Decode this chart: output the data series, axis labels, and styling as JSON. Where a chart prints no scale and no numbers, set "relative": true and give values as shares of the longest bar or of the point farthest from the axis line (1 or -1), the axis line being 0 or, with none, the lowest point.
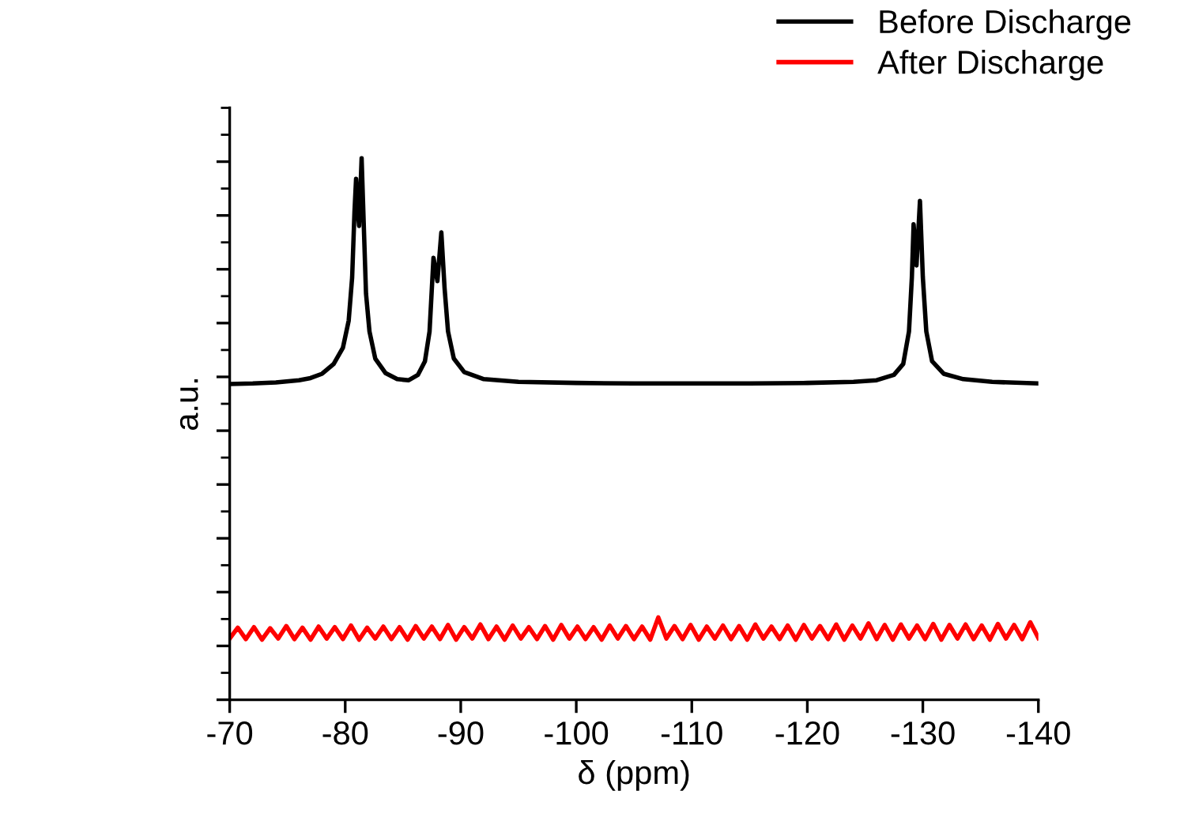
{
  "chart_data": {
    "type": "line",
    "xlabel": "δ (ppm)",
    "ylabel": "a.u.",
    "relative": true,
    "xlim": [
      -70,
      -140
    ],
    "xticks": [
      -70,
      -80,
      -90,
      -100,
      -110,
      -120,
      -130,
      -140
    ],
    "legend": "top right",
    "grid": false,
    "marker": "none",
    "line_style": "solid",
    "series": [
      {
        "name": "Before Discharge",
        "color": "#000000",
        "x": [
          -70,
          -72,
          -74,
          -76,
          -77,
          -78,
          -79,
          -79.8,
          -80.3,
          -80.6,
          -80.8,
          -80.94,
          -81.1,
          -81.2,
          -81.42,
          -81.6,
          -81.8,
          -82.1,
          -82.6,
          -83.5,
          -84.5,
          -85.5,
          -86.3,
          -86.9,
          -87.3,
          -87.5,
          -87.64,
          -87.98,
          -88.32,
          -88.6,
          -88.9,
          -89.4,
          -90.3,
          -92,
          -95,
          -100,
          -105,
          -110,
          -115,
          -120,
          -124,
          -126,
          -127.5,
          -128.3,
          -128.8,
          -129.05,
          -129.2,
          -129.45,
          -129.75,
          -130.0,
          -130.3,
          -130.8,
          -131.8,
          -133.5,
          -136,
          -140
        ],
        "values": [
          0.583,
          0.584,
          0.586,
          0.59,
          0.594,
          0.602,
          0.62,
          0.65,
          0.7,
          0.78,
          0.9,
          0.962,
          0.9,
          0.875,
          1.0,
          0.88,
          0.75,
          0.68,
          0.63,
          0.603,
          0.592,
          0.59,
          0.6,
          0.625,
          0.68,
          0.76,
          0.816,
          0.773,
          0.863,
          0.76,
          0.68,
          0.63,
          0.605,
          0.592,
          0.587,
          0.585,
          0.584,
          0.584,
          0.584,
          0.585,
          0.587,
          0.59,
          0.6,
          0.62,
          0.68,
          0.78,
          0.878,
          0.802,
          0.921,
          0.78,
          0.68,
          0.625,
          0.602,
          0.592,
          0.587,
          0.584
        ]
      },
      {
        "name": "After Discharge",
        "color": "#ff0000",
        "x": [
          -70,
          -70.7,
          -71.4,
          -72.1,
          -72.8,
          -73.5,
          -74.2,
          -74.9,
          -75.6,
          -76.3,
          -77,
          -77.7,
          -78.4,
          -79.1,
          -79.8,
          -80.5,
          -81.2,
          -81.9,
          -82.6,
          -83.3,
          -84,
          -84.7,
          -85.4,
          -86.1,
          -86.8,
          -87.5,
          -88.2,
          -88.9,
          -89.6,
          -90.3,
          -91,
          -91.7,
          -92.4,
          -93.1,
          -93.8,
          -94.5,
          -95.2,
          -95.9,
          -96.6,
          -97.3,
          -98,
          -98.7,
          -99.4,
          -100.1,
          -100.8,
          -101.5,
          -102.2,
          -102.9,
          -103.6,
          -104.3,
          -105,
          -105.7,
          -106.4,
          -107.1,
          -107.8,
          -108.5,
          -109.2,
          -109.9,
          -110.6,
          -111.3,
          -112,
          -112.7,
          -113.4,
          -114.1,
          -114.8,
          -115.5,
          -116.2,
          -116.9,
          -117.6,
          -118.3,
          -119,
          -119.7,
          -120.4,
          -121.1,
          -121.8,
          -122.5,
          -123.2,
          -123.9,
          -124.6,
          -125.3,
          -126,
          -126.7,
          -127.4,
          -128.1,
          -128.8,
          -129.5,
          -130.2,
          -130.9,
          -131.6,
          -132.3,
          -133,
          -133.7,
          -134.4,
          -135.1,
          -135.8,
          -136.5,
          -137.2,
          -137.9,
          -138.6,
          -139.3,
          -140
        ],
        "values": [
          0.113,
          0.133,
          0.112,
          0.134,
          0.111,
          0.132,
          0.113,
          0.136,
          0.112,
          0.133,
          0.111,
          0.135,
          0.113,
          0.134,
          0.112,
          0.137,
          0.111,
          0.133,
          0.113,
          0.135,
          0.112,
          0.134,
          0.111,
          0.136,
          0.113,
          0.135,
          0.112,
          0.138,
          0.111,
          0.134,
          0.113,
          0.139,
          0.112,
          0.135,
          0.111,
          0.137,
          0.113,
          0.134,
          0.112,
          0.136,
          0.111,
          0.138,
          0.113,
          0.135,
          0.112,
          0.134,
          0.111,
          0.137,
          0.113,
          0.136,
          0.112,
          0.135,
          0.111,
          0.152,
          0.113,
          0.136,
          0.112,
          0.138,
          0.111,
          0.135,
          0.113,
          0.137,
          0.112,
          0.136,
          0.111,
          0.139,
          0.113,
          0.135,
          0.112,
          0.137,
          0.111,
          0.138,
          0.113,
          0.136,
          0.112,
          0.139,
          0.111,
          0.137,
          0.113,
          0.141,
          0.112,
          0.138,
          0.111,
          0.139,
          0.113,
          0.137,
          0.112,
          0.14,
          0.111,
          0.138,
          0.113,
          0.139,
          0.112,
          0.137,
          0.111,
          0.14,
          0.113,
          0.138,
          0.112,
          0.143,
          0.114
        ]
      }
    ]
  }
}
